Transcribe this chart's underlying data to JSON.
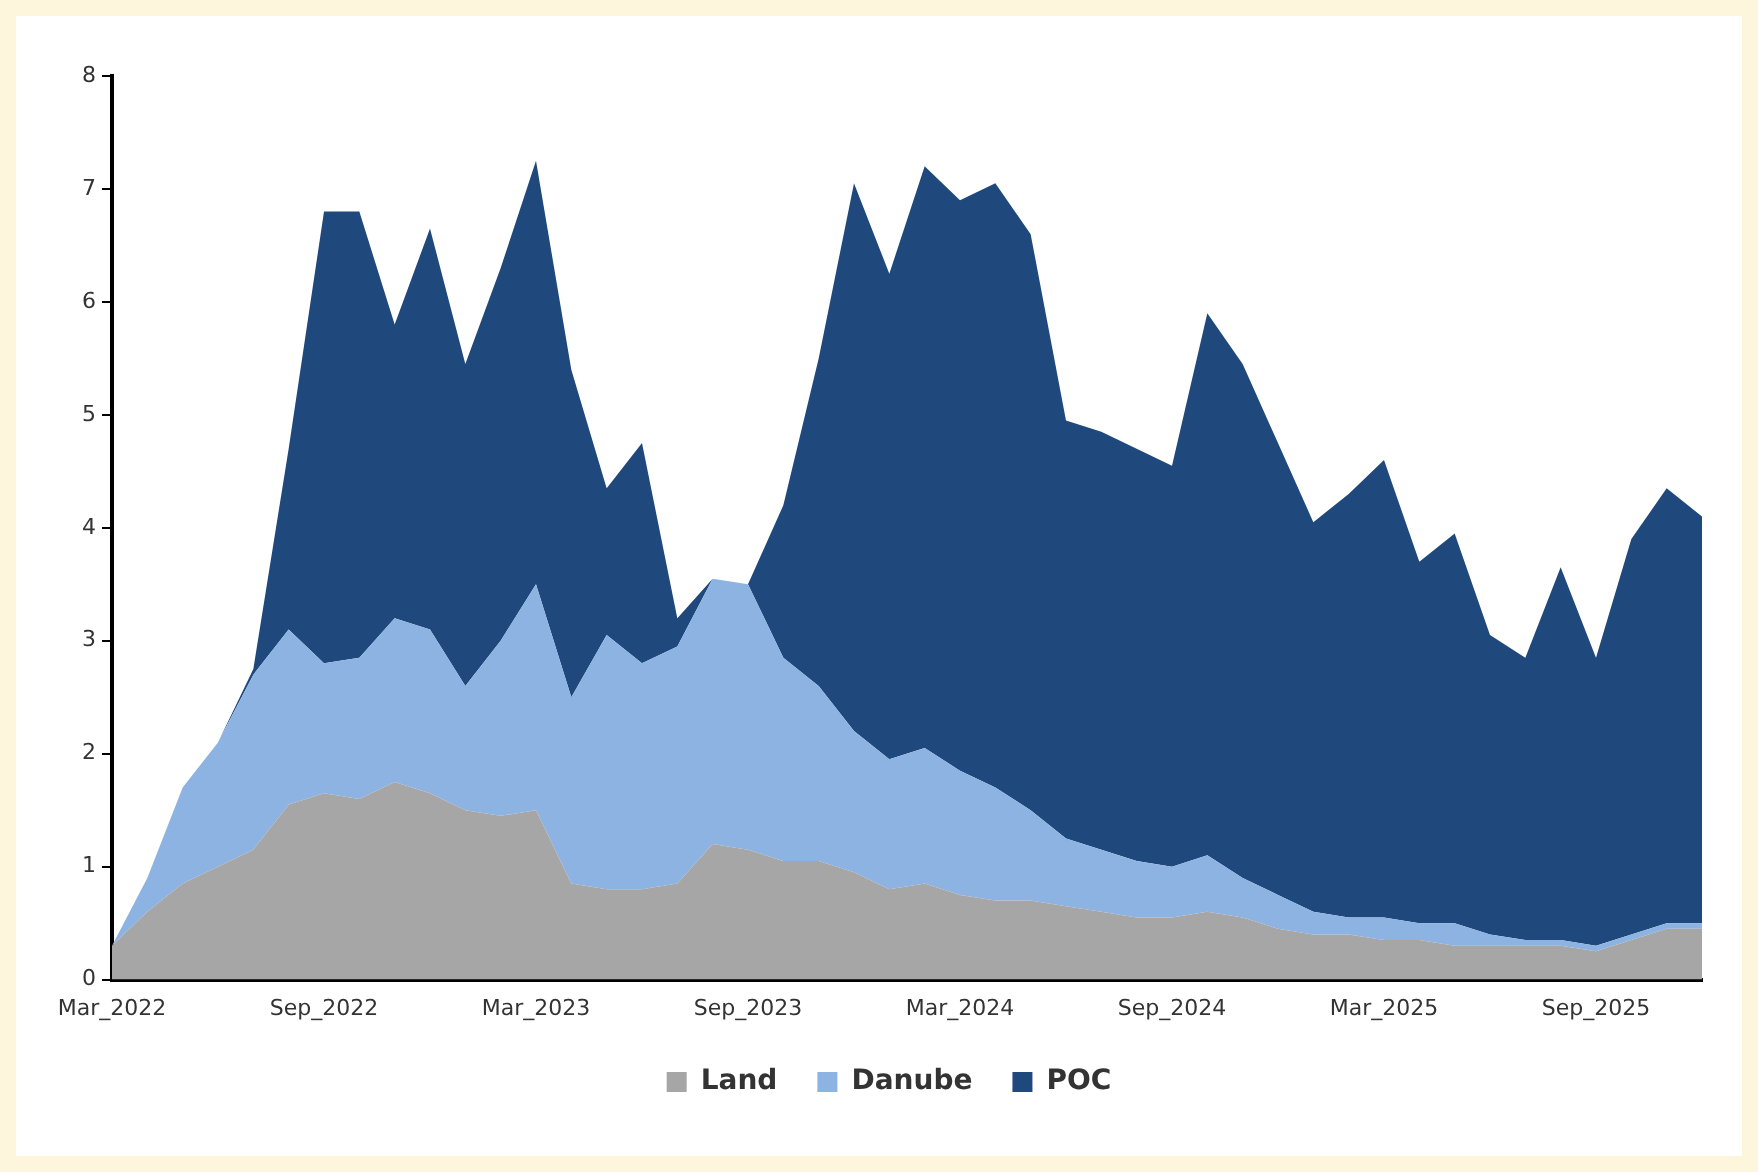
{
  "chart_data": {
    "type": "area",
    "stacked": true,
    "categories": [
      "Mar_2022",
      null,
      null,
      null,
      null,
      null,
      "Sep_2022",
      null,
      null,
      null,
      null,
      null,
      "Mar_2023",
      null,
      null,
      null,
      null,
      null,
      "Sep_2023",
      null,
      null,
      null,
      null,
      null,
      "Mar_2024",
      null,
      null,
      null,
      null,
      null,
      "Sep_2024",
      null,
      null,
      null,
      null,
      null,
      "Mar_2025",
      null,
      null,
      null,
      null,
      null,
      "Sep_2025",
      null,
      null,
      null
    ],
    "series": [
      {
        "name": "Land",
        "color": "#a6a6a6",
        "values": [
          0.3,
          0.6,
          0.85,
          1.0,
          1.15,
          1.55,
          1.65,
          1.6,
          1.75,
          1.65,
          1.5,
          1.45,
          1.5,
          0.85,
          0.8,
          0.8,
          0.85,
          1.2,
          1.15,
          1.05,
          1.05,
          0.95,
          0.8,
          0.85,
          0.75,
          0.7,
          0.7,
          0.65,
          0.6,
          0.55,
          0.55,
          0.6,
          0.55,
          0.45,
          0.4,
          0.4,
          0.35,
          0.35,
          0.3,
          0.3,
          0.3,
          0.3,
          0.25,
          0.35,
          0.45,
          0.45
        ]
      },
      {
        "name": "Danube",
        "color": "#8db3e2",
        "values": [
          0,
          0.3,
          0.85,
          1.1,
          1.55,
          1.55,
          1.15,
          1.25,
          1.45,
          1.45,
          1.1,
          1.55,
          2.0,
          1.65,
          2.25,
          2.0,
          2.1,
          2.35,
          2.35,
          1.8,
          1.55,
          1.25,
          1.15,
          1.2,
          1.1,
          1.0,
          0.8,
          0.6,
          0.55,
          0.5,
          0.45,
          0.5,
          0.35,
          0.3,
          0.2,
          0.15,
          0.2,
          0.15,
          0.2,
          0.1,
          0.05,
          0.05,
          0.05,
          0.05,
          0.05,
          0.05
        ]
      },
      {
        "name": "POC",
        "color": "#1f497d",
        "values": [
          0,
          0,
          0,
          0,
          0.05,
          1.6,
          4.0,
          3.95,
          2.6,
          3.55,
          2.85,
          3.3,
          3.75,
          2.9,
          1.3,
          1.95,
          0.25,
          0,
          0,
          1.35,
          2.9,
          4.85,
          4.3,
          5.15,
          5.05,
          5.35,
          5.1,
          3.7,
          3.7,
          3.65,
          3.55,
          4.8,
          4.55,
          4.0,
          3.45,
          3.75,
          4.05,
          3.2,
          3.45,
          2.65,
          2.5,
          3.3,
          2.55,
          3.5,
          3.85,
          3.6
        ]
      }
    ],
    "ylim": [
      0,
      8
    ],
    "yticks": [
      0,
      1,
      2,
      3,
      4,
      5,
      6,
      7,
      8
    ],
    "grid": false,
    "legend": "bottom"
  }
}
